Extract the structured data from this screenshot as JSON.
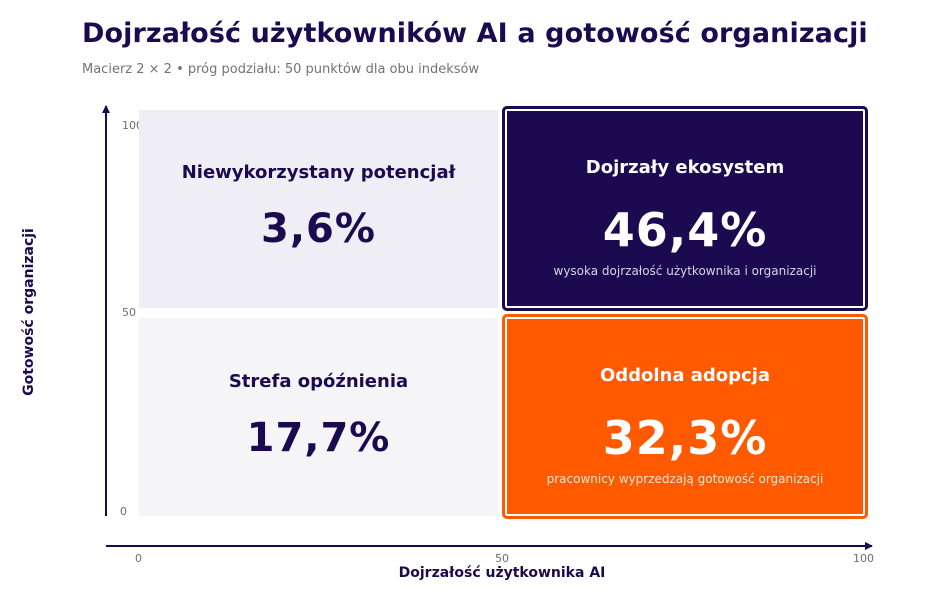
{
  "title": "Dojrzałość użytkowników AI a gotowość organizacji",
  "subtitle": "Macierz 2 × 2 • próg podziału: 50 punktów dla obu indeksów",
  "colors": {
    "navy": "#1b0a4f",
    "orange": "#ff5a00",
    "light_top": "#eeeef4",
    "light_bottom": "#f5f5f8",
    "tick_gray": "#6e6e6e"
  },
  "chart_data": {
    "type": "table",
    "title": "Dojrzałość użytkowników AI a gotowość organizacji",
    "subtitle": "Macierz 2 × 2 • próg podziału: 50 punktów dla obu indeksów",
    "xlabel": "Dojrzałość użytkownika AI",
    "ylabel": "Gotowość organizacji",
    "xlim": [
      0,
      100
    ],
    "ylim": [
      0,
      100
    ],
    "x_ticks": [
      "0",
      "50",
      "100"
    ],
    "y_ticks": [
      "0",
      "50",
      "100"
    ],
    "threshold": 50,
    "quadrants": [
      {
        "position": "top-left",
        "label": "Niewykorzystany potencjał",
        "value": 3.6,
        "value_text": "3,6%",
        "description": ""
      },
      {
        "position": "top-right",
        "label": "Dojrzały ekosystem",
        "value": 46.4,
        "value_text": "46,4%",
        "description": "wysoka dojrzałość użytkownika i organizacji"
      },
      {
        "position": "bottom-left",
        "label": "Strefa opóźnienia",
        "value": 17.7,
        "value_text": "17,7%",
        "description": ""
      },
      {
        "position": "bottom-right",
        "label": "Oddolna adopcja",
        "value": 32.3,
        "value_text": "32,3%",
        "description": "pracownicy wyprzedzają gotowość organizacji"
      }
    ]
  }
}
